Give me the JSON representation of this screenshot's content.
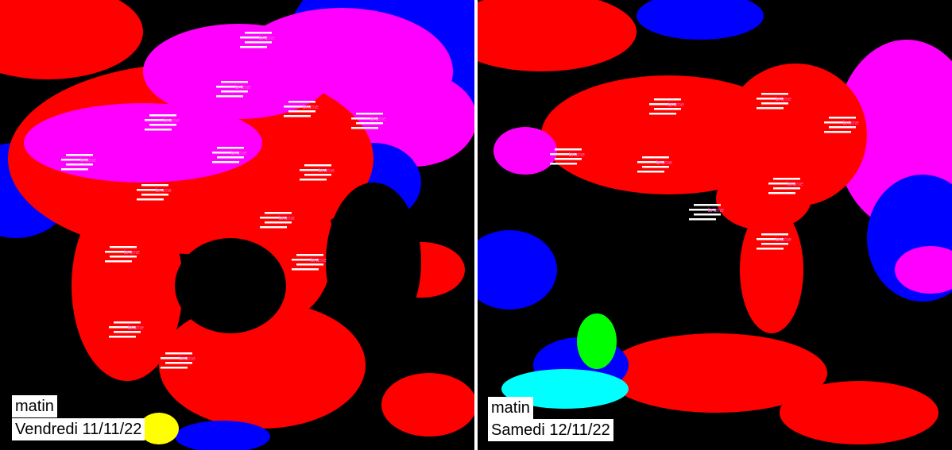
{
  "panels": [
    {
      "period": "matin",
      "date": "Vendredi 11/11/22",
      "fog_label": "brume"
    },
    {
      "period": "matin",
      "date": "Samedi 12/11/22",
      "fog_label": "brume"
    }
  ]
}
